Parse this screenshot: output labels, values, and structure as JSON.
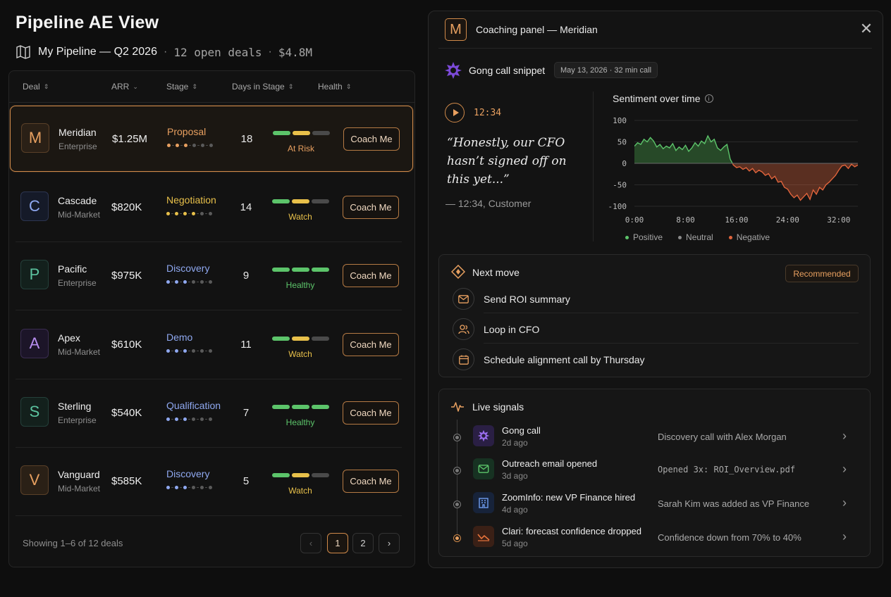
{
  "page": {
    "title": "Pipeline AE View",
    "pipeline_title": "My Pipeline — Q2 2026",
    "open_deals": "12 open deals",
    "pipeline_value": "$4.8M",
    "separator": "·"
  },
  "table": {
    "columns": {
      "deal": "Deal",
      "arr": "ARR",
      "stage": "Stage",
      "days": "Days in Stage",
      "health": "Health"
    },
    "rows": [
      {
        "initial": "M",
        "name": "Meridian",
        "segment": "Enterprise",
        "arr": "$1.25M",
        "stage": "Proposal",
        "days": "18",
        "health": "At Risk",
        "coach": "Coach Me"
      },
      {
        "initial": "C",
        "name": "Cascade",
        "segment": "Mid-Market",
        "arr": "$820K",
        "stage": "Negotiation",
        "days": "14",
        "health": "Watch",
        "coach": "Coach Me"
      },
      {
        "initial": "P",
        "name": "Pacific",
        "segment": "Enterprise",
        "arr": "$975K",
        "stage": "Discovery",
        "days": "9",
        "health": "Healthy",
        "coach": "Coach Me"
      },
      {
        "initial": "A",
        "name": "Apex",
        "segment": "Mid-Market",
        "arr": "$610K",
        "stage": "Demo",
        "days": "11",
        "health": "Watch",
        "coach": "Coach Me"
      },
      {
        "initial": "S",
        "name": "Sterling",
        "segment": "Enterprise",
        "arr": "$540K",
        "stage": "Qualification",
        "days": "7",
        "health": "Healthy",
        "coach": "Coach Me"
      },
      {
        "initial": "V",
        "name": "Vanguard",
        "segment": "Mid-Market",
        "arr": "$585K",
        "stage": "Discovery",
        "days": "5",
        "health": "Watch",
        "coach": "Coach Me"
      }
    ],
    "footer": "Showing 1–6 of 12 deals",
    "pagination": {
      "prev": "‹",
      "page1": "1",
      "page2": "2",
      "next": "›"
    }
  },
  "colors": {
    "accent": "#d08a4a",
    "at_risk": "#e8a060",
    "watch": "#e8c04a",
    "healthy": "#5cc46a",
    "stage_discovery": "#8fa8f0",
    "positive": "#4caf50",
    "negative": "#e0643c"
  },
  "panel": {
    "avatar": "M",
    "title": "Coaching panel — Meridian",
    "close": "✕",
    "gong": {
      "title": "Gong call snippet",
      "date_chip": "May 13, 2026 · 32 min call",
      "timestamp": "12:34",
      "quote": "“Honestly, our CFO hasn’t signed off on this yet...”",
      "attribution": "— 12:34, Customer"
    },
    "sentiment": {
      "title": "Sentiment over time",
      "legend": {
        "positive": "Positive",
        "neutral": "Neutral",
        "negative": "Negative"
      }
    },
    "next_move": {
      "title": "Next move",
      "chip": "Recommended",
      "items": [
        {
          "label": "Send ROI summary",
          "icon": "mail-icon"
        },
        {
          "label": "Loop in CFO",
          "icon": "people-icon"
        },
        {
          "label": "Schedule alignment call by Thursday",
          "icon": "calendar-icon"
        }
      ]
    },
    "signals": {
      "title": "Live signals",
      "items": [
        {
          "name": "Gong call",
          "ago": "2d ago",
          "detail": "Discovery call with Alex Morgan",
          "icon": "gong-icon"
        },
        {
          "name": "Outreach email opened",
          "ago": "3d ago",
          "detail": "Opened 3x: ROI_Overview.pdf",
          "icon": "email-icon"
        },
        {
          "name": "ZoomInfo: new VP Finance hired",
          "ago": "4d ago",
          "detail": "Sarah Kim was added as VP Finance",
          "icon": "building-icon"
        },
        {
          "name": "Clari: forecast confidence dropped",
          "ago": "5d ago",
          "detail": "Confidence down from 70% to 40%",
          "icon": "trend-down-icon"
        }
      ]
    }
  },
  "chart_data": {
    "type": "area",
    "title": "Sentiment over time",
    "x_ticks": [
      "0:00",
      "8:00",
      "16:00",
      "24:00",
      "32:00"
    ],
    "xlim": [
      0,
      35
    ],
    "ylim": [
      -100,
      100
    ],
    "y_ticks": [
      100,
      50,
      0,
      -50,
      -100
    ],
    "xlabel": "",
    "ylabel": "",
    "grid": true,
    "legend": "bottom",
    "series": [
      {
        "name": "Sentiment",
        "x": [
          0,
          0.5,
          1,
          1.5,
          2,
          2.5,
          3,
          3.5,
          4,
          4.5,
          5,
          5.5,
          6,
          6.5,
          7,
          7.5,
          8,
          8.5,
          9,
          9.5,
          10,
          10.5,
          11,
          11.5,
          12,
          12.5,
          13,
          13.5,
          14,
          14.5,
          15,
          15.5,
          16,
          16.5,
          17,
          17.5,
          18,
          18.5,
          19,
          19.5,
          20,
          20.5,
          21,
          21.5,
          22,
          22.5,
          23,
          23.5,
          24,
          24.5,
          25,
          25.5,
          26,
          26.5,
          27,
          27.5,
          28,
          28.5,
          29,
          29.5,
          30,
          30.5,
          31,
          31.5,
          32,
          32.5,
          33,
          33.5,
          34,
          34.5,
          35
        ],
        "y": [
          40,
          48,
          44,
          56,
          50,
          60,
          52,
          38,
          44,
          34,
          40,
          36,
          46,
          30,
          38,
          32,
          42,
          28,
          36,
          48,
          40,
          52,
          46,
          64,
          50,
          56,
          36,
          30,
          38,
          44,
          10,
          -4,
          -10,
          -8,
          -14,
          -10,
          -18,
          -12,
          -22,
          -16,
          -20,
          -28,
          -24,
          -36,
          -30,
          -44,
          -42,
          -56,
          -60,
          -72,
          -80,
          -74,
          -86,
          -78,
          -70,
          -84,
          -62,
          -72,
          -56,
          -62,
          -50,
          -44,
          -36,
          -28,
          -16,
          -6,
          -4,
          -12,
          -2,
          -8,
          -4
        ]
      }
    ]
  }
}
